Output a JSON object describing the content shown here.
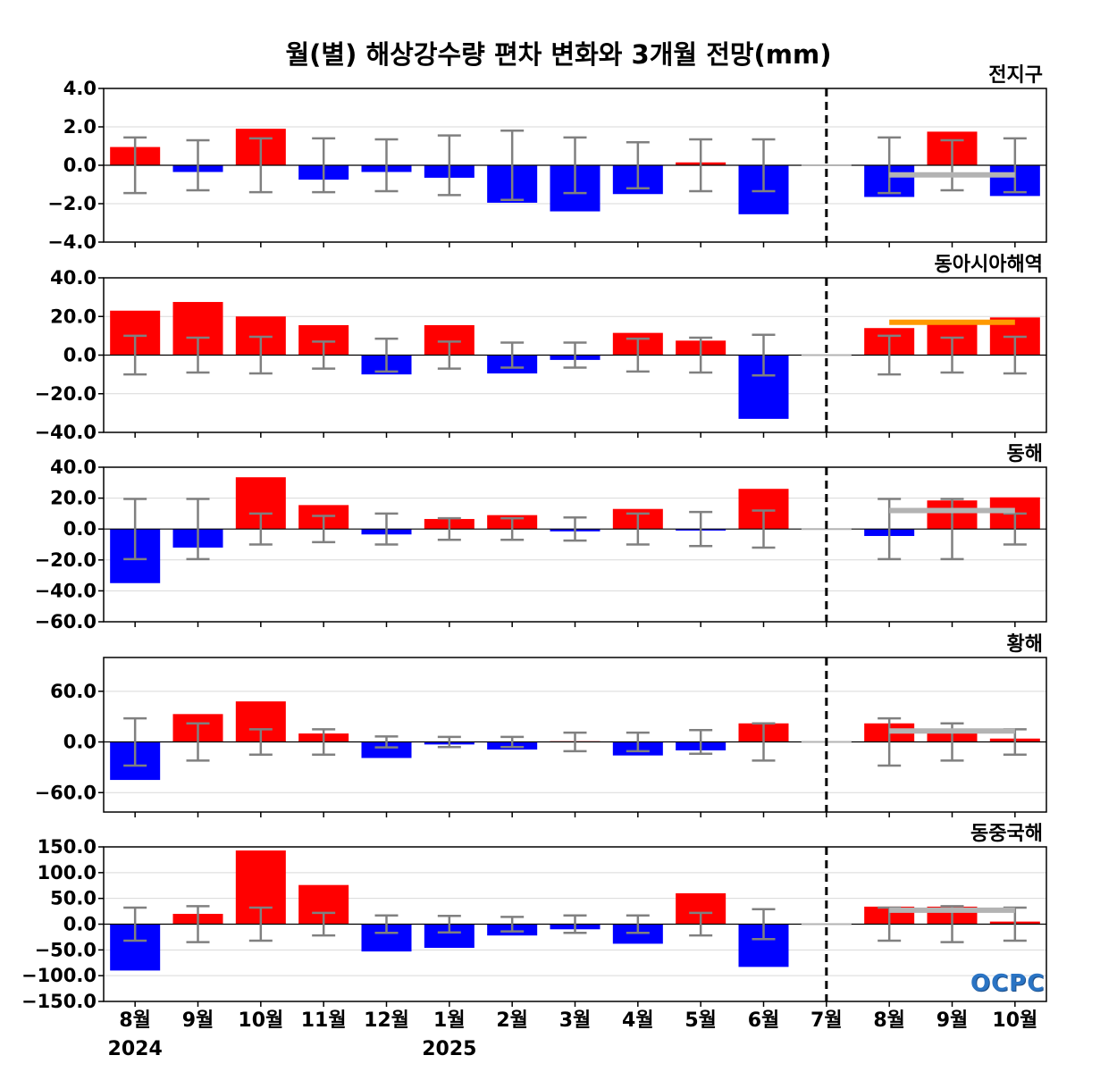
{
  "title": "월(별) 해상강수량 편차 변화와 3개월 전망(mm)",
  "logo": "OCPC",
  "colors": {
    "positive": "#ff0000",
    "negative": "#0000ff",
    "error_bar": "#808080",
    "outlook_gray": "#b3b3b3",
    "outlook_orange": "#ff9900"
  },
  "chart_data": {
    "type": "bar",
    "categories": [
      "8월",
      "9월",
      "10월",
      "11월",
      "12월",
      "1월",
      "2월",
      "3월",
      "4월",
      "5월",
      "6월",
      "7월",
      "8월",
      "9월",
      "10월"
    ],
    "year_labels": [
      {
        "index": 0,
        "text": "2024"
      },
      {
        "index": 5,
        "text": "2025"
      }
    ],
    "divider_after_index": 11,
    "panels": [
      {
        "title": "전지구",
        "ylim": [
          -4,
          4
        ],
        "yticks": [
          4,
          2,
          0,
          -2,
          -4
        ],
        "ytick_labels": [
          "4.0",
          "2.0",
          "0.0",
          "−2.0",
          "−4.0"
        ],
        "values": [
          0.95,
          -0.35,
          1.9,
          -0.75,
          -0.35,
          -0.65,
          -1.95,
          -2.4,
          -1.5,
          0.15,
          -2.55,
          0,
          -1.65,
          1.75,
          -1.6
        ],
        "error_bars": [
          1.45,
          1.3,
          1.4,
          1.4,
          1.35,
          1.55,
          1.8,
          1.45,
          1.2,
          1.35,
          1.35,
          null,
          1.45,
          1.3,
          1.4
        ],
        "outlook_mean": -0.5,
        "outlook_color": "gray"
      },
      {
        "title": "동아시아해역",
        "ylim": [
          -40,
          40
        ],
        "yticks": [
          40,
          20,
          0,
          -20,
          -40
        ],
        "ytick_labels": [
          "40.0",
          "20.0",
          "0.0",
          "−20.0",
          "−40.0"
        ],
        "values": [
          23,
          27.5,
          20,
          15.5,
          -10,
          15.5,
          -9.5,
          -2.5,
          11.5,
          7.5,
          -33,
          0,
          14,
          16.5,
          19.5
        ],
        "error_bars": [
          10,
          9,
          9.5,
          7,
          8.5,
          7,
          6.5,
          6.5,
          8.5,
          9,
          10.5,
          null,
          10,
          9,
          9.5
        ],
        "outlook_mean": 17,
        "outlook_color": "orange"
      },
      {
        "title": "동해",
        "ylim": [
          -60,
          40
        ],
        "yticks": [
          40,
          20,
          0,
          -20,
          -40,
          -60
        ],
        "ytick_labels": [
          "40.0",
          "20.0",
          "0.0",
          "−20.0",
          "−40.0",
          "−60.0"
        ],
        "values": [
          -35,
          -12,
          33.5,
          15.5,
          -3.5,
          6.5,
          9,
          -1.5,
          13,
          -1,
          26,
          0,
          -4.5,
          18.5,
          20.5
        ],
        "error_bars": [
          19.5,
          19.5,
          10,
          8.5,
          10,
          7,
          7,
          7.5,
          10,
          11,
          12,
          null,
          19.5,
          19.5,
          10
        ],
        "outlook_mean": 12,
        "outlook_color": "gray"
      },
      {
        "title": "황해",
        "ylim": [
          -83,
          100
        ],
        "yticks": [
          60,
          0,
          -60
        ],
        "ytick_labels": [
          "60.0",
          "0.0",
          "−60.0"
        ],
        "values": [
          -45,
          33,
          48,
          10,
          -19,
          -3,
          -9,
          0.8,
          -16,
          -10,
          22,
          0,
          22,
          13,
          4
        ],
        "error_bars": [
          28,
          22,
          15,
          15,
          6.5,
          6,
          6,
          11,
          11,
          14,
          22,
          null,
          28,
          22,
          15
        ],
        "outlook_mean": 13,
        "outlook_color": "gray"
      },
      {
        "title": "동중국해",
        "ylim": [
          -150,
          150
        ],
        "yticks": [
          150,
          100,
          50,
          0,
          -50,
          -100,
          -150
        ],
        "ytick_labels": [
          "150.0",
          "100.0",
          "50.0",
          "0.0",
          "−50.0",
          "−100.0",
          "−150.0"
        ],
        "values": [
          -90,
          20,
          143,
          76,
          -53,
          -46,
          -22,
          -10,
          -38,
          60,
          -83,
          0,
          34,
          34,
          5
        ],
        "error_bars": [
          32,
          35,
          32,
          22,
          17,
          16,
          14,
          17,
          17,
          22,
          29,
          null,
          32,
          35,
          32
        ],
        "outlook_mean": 27,
        "outlook_color": "gray"
      }
    ]
  }
}
